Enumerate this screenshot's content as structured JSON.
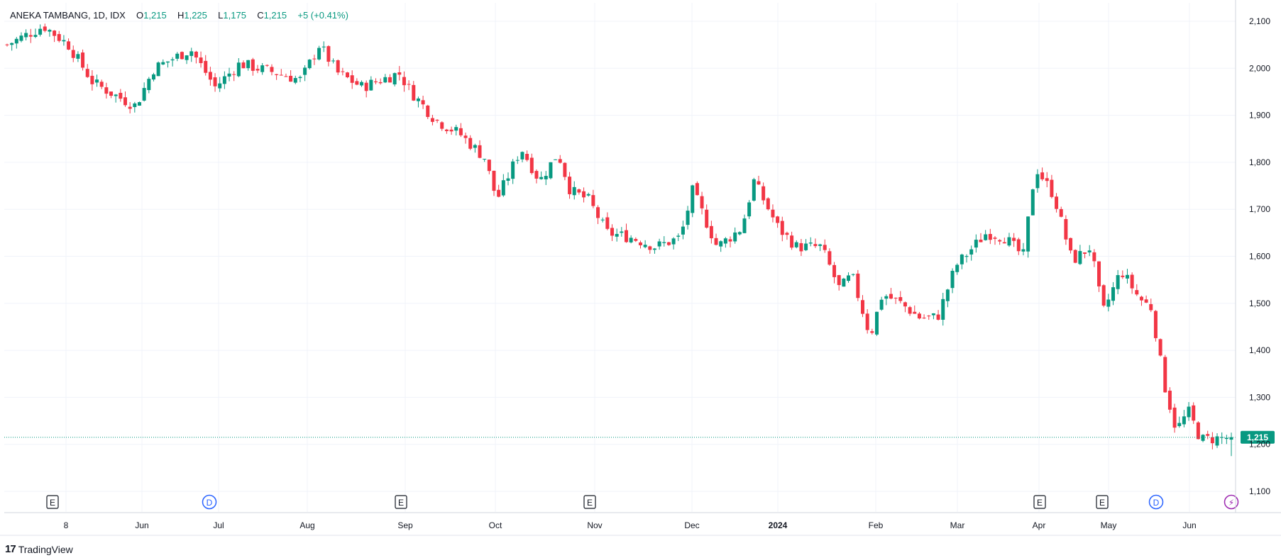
{
  "legend": {
    "symbol": "ANEKA TAMBANG, 1D, IDX",
    "o_label": "O",
    "o_value": "1,215",
    "h_label": "H",
    "h_value": "1,225",
    "l_label": "L",
    "l_value": "1,175",
    "c_label": "C",
    "c_value": "1,215",
    "change": "+5 (+0.41%)"
  },
  "brand": {
    "logo": "17",
    "name": "TradingView"
  },
  "colors": {
    "up": "#089981",
    "down": "#F23645",
    "grid": "#F0F3FA",
    "text": "#131722",
    "event_e": "#131722",
    "event_d": "#2962FF",
    "event_flash": "#9C27B0"
  },
  "chart_data": {
    "type": "candlestick",
    "y_ticks": [
      "2,100",
      "2,000",
      "1,900",
      "1,800",
      "1,700",
      "1,600",
      "1,500",
      "1,400",
      "1,300",
      "1,200",
      "1,100"
    ],
    "ylim": [
      1065,
      2135
    ],
    "x_ticks": [
      {
        "label": "8",
        "bold": false
      },
      {
        "label": "Jun",
        "bold": false
      },
      {
        "label": "Jul",
        "bold": false
      },
      {
        "label": "Aug",
        "bold": false
      },
      {
        "label": "Sep",
        "bold": false
      },
      {
        "label": "Oct",
        "bold": false
      },
      {
        "label": "Nov",
        "bold": false
      },
      {
        "label": "Dec",
        "bold": false
      },
      {
        "label": "2024",
        "bold": true
      },
      {
        "label": "Feb",
        "bold": false
      },
      {
        "label": "Mar",
        "bold": false
      },
      {
        "label": "Apr",
        "bold": false
      },
      {
        "label": "May",
        "bold": false
      },
      {
        "label": "Jun",
        "bold": false
      }
    ],
    "last_price": 1215,
    "last_price_label": "1,215",
    "events": [
      {
        "type": "E",
        "label": "E",
        "at": "May 2023"
      },
      {
        "type": "D",
        "label": "D",
        "at": "Jul 2023"
      },
      {
        "type": "E",
        "label": "E",
        "at": "Aug 2023"
      },
      {
        "type": "E",
        "label": "E",
        "at": "Oct 2023"
      },
      {
        "type": "E",
        "label": "E",
        "at": "Apr 2024"
      },
      {
        "type": "E",
        "label": "E",
        "at": "Apr 2024"
      },
      {
        "type": "D",
        "label": "D",
        "at": "May 2024"
      },
      {
        "type": "flash",
        "label": "⚡",
        "at": "Jun 2024"
      }
    ],
    "anchors": [
      {
        "p": 0,
        "c": 2050
      },
      {
        "p": 0.03,
        "c": 2090
      },
      {
        "p": 0.05,
        "c": 2050
      },
      {
        "p": 0.07,
        "c": 1970
      },
      {
        "p": 0.09,
        "c": 1940
      },
      {
        "p": 0.105,
        "c": 1920
      },
      {
        "p": 0.12,
        "c": 2000
      },
      {
        "p": 0.15,
        "c": 2040
      },
      {
        "p": 0.17,
        "c": 1960
      },
      {
        "p": 0.19,
        "c": 2010
      },
      {
        "p": 0.22,
        "c": 1990
      },
      {
        "p": 0.24,
        "c": 1975
      },
      {
        "p": 0.255,
        "c": 2050
      },
      {
        "p": 0.27,
        "c": 1990
      },
      {
        "p": 0.29,
        "c": 1960
      },
      {
        "p": 0.32,
        "c": 1990
      },
      {
        "p": 0.33,
        "c": 1950
      },
      {
        "p": 0.35,
        "c": 1890
      },
      {
        "p": 0.37,
        "c": 1860
      },
      {
        "p": 0.39,
        "c": 1810
      },
      {
        "p": 0.4,
        "c": 1720
      },
      {
        "p": 0.42,
        "c": 1830
      },
      {
        "p": 0.435,
        "c": 1760
      },
      {
        "p": 0.45,
        "c": 1820
      },
      {
        "p": 0.46,
        "c": 1740
      },
      {
        "p": 0.475,
        "c": 1720
      },
      {
        "p": 0.49,
        "c": 1650
      },
      {
        "p": 0.51,
        "c": 1640
      },
      {
        "p": 0.53,
        "c": 1620
      },
      {
        "p": 0.55,
        "c": 1640
      },
      {
        "p": 0.56,
        "c": 1740
      },
      {
        "p": 0.58,
        "c": 1620
      },
      {
        "p": 0.6,
        "c": 1660
      },
      {
        "p": 0.61,
        "c": 1760
      },
      {
        "p": 0.63,
        "c": 1660
      },
      {
        "p": 0.645,
        "c": 1620
      },
      {
        "p": 0.665,
        "c": 1620
      },
      {
        "p": 0.68,
        "c": 1530
      },
      {
        "p": 0.69,
        "c": 1560
      },
      {
        "p": 0.705,
        "c": 1430
      },
      {
        "p": 0.715,
        "c": 1520
      },
      {
        "p": 0.73,
        "c": 1500
      },
      {
        "p": 0.745,
        "c": 1470
      },
      {
        "p": 0.76,
        "c": 1470
      },
      {
        "p": 0.775,
        "c": 1580
      },
      {
        "p": 0.8,
        "c": 1650
      },
      {
        "p": 0.815,
        "c": 1640
      },
      {
        "p": 0.83,
        "c": 1600
      },
      {
        "p": 0.84,
        "c": 1790
      },
      {
        "p": 0.855,
        "c": 1730
      },
      {
        "p": 0.87,
        "c": 1590
      },
      {
        "p": 0.885,
        "c": 1620
      },
      {
        "p": 0.895,
        "c": 1480
      },
      {
        "p": 0.91,
        "c": 1570
      },
      {
        "p": 0.925,
        "c": 1510
      },
      {
        "p": 0.935,
        "c": 1490
      },
      {
        "p": 0.945,
        "c": 1330
      },
      {
        "p": 0.955,
        "c": 1230
      },
      {
        "p": 0.965,
        "c": 1270
      },
      {
        "p": 0.975,
        "c": 1210
      },
      {
        "p": 1,
        "c": 1215
      }
    ]
  }
}
